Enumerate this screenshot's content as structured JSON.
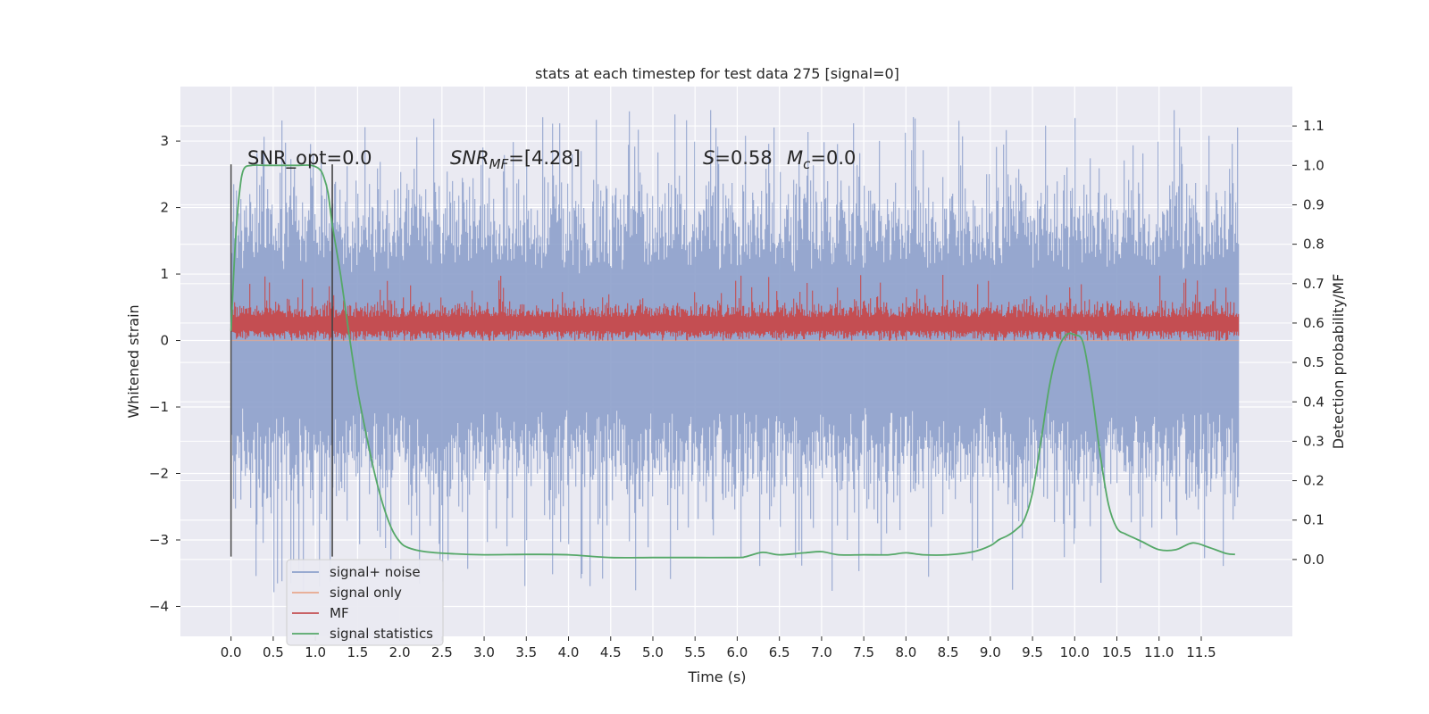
{
  "chart_data": {
    "type": "line",
    "title": "stats at each timestep for test data 275 [signal=0]",
    "xlabel": "Time (s)",
    "ylabel_left": "Whitened strain",
    "ylabel_right": "Detection probability/MF",
    "xlim": [
      -0.6,
      12.58
    ],
    "ylim_left": [
      -4.45,
      3.82
    ],
    "ylim_right": [
      -0.195,
      1.2
    ],
    "x_ticks": [
      0.0,
      0.5,
      1.0,
      1.5,
      2.0,
      2.5,
      3.0,
      3.5,
      4.0,
      4.5,
      5.0,
      5.5,
      6.0,
      6.5,
      7.0,
      7.5,
      8.0,
      8.5,
      9.0,
      9.5,
      10.0,
      10.5,
      11.0,
      11.5
    ],
    "y_ticks_left": [
      -4,
      -3,
      -2,
      -1,
      0,
      1,
      2,
      3
    ],
    "y_tick_labels_left": [
      "−4",
      "−3",
      "−2",
      "−1",
      "0",
      "1",
      "2",
      "3"
    ],
    "y_ticks_right": [
      0.0,
      0.1,
      0.2,
      0.3,
      0.4,
      0.5,
      0.6,
      0.7,
      0.8,
      0.9,
      1.0,
      1.1
    ],
    "grid": true,
    "legend_position": "lower-left",
    "series": [
      {
        "name": "signal+ noise",
        "color": "#8da0cb",
        "axis": "left",
        "style": "dense noise band",
        "x_range": [
          0.0,
          11.95
        ],
        "envelope_approx": {
          "typical": [
            -2.0,
            2.0
          ],
          "peaks": [
            -4.1,
            3.5
          ]
        }
      },
      {
        "name": "signal only",
        "color": "#e8a88d",
        "axis": "left",
        "values_note": "flat at 0"
      },
      {
        "name": "MF",
        "color": "#c44e52",
        "axis": "left",
        "style": "dense noise band",
        "x_range": [
          0.0,
          11.95
        ],
        "envelope_approx": {
          "typical": [
            0.05,
            0.55
          ],
          "peaks": [
            0.0,
            1.0
          ]
        }
      },
      {
        "name": "signal statistics",
        "color": "#55a868",
        "axis": "right",
        "x": [
          0.0,
          0.05,
          0.1,
          0.15,
          0.25,
          0.4,
          0.6,
          0.8,
          0.95,
          1.05,
          1.1,
          1.15,
          1.2,
          1.3,
          1.4,
          1.5,
          1.6,
          1.7,
          1.8,
          1.9,
          2.0,
          2.1,
          2.3,
          2.6,
          3.0,
          3.5,
          4.0,
          4.5,
          5.0,
          5.5,
          6.0,
          6.1,
          6.3,
          6.5,
          6.8,
          7.0,
          7.2,
          7.5,
          7.8,
          8.0,
          8.2,
          8.5,
          8.8,
          9.0,
          9.1,
          9.2,
          9.3,
          9.4,
          9.5,
          9.6,
          9.7,
          9.8,
          9.9,
          10.0,
          10.1,
          10.2,
          10.3,
          10.4,
          10.5,
          10.6,
          10.7,
          10.8,
          11.0,
          11.2,
          11.4,
          11.6,
          11.8,
          11.9
        ],
        "values": [
          0.58,
          0.8,
          0.93,
          0.99,
          1.0,
          1.0,
          1.0,
          1.0,
          1.0,
          0.99,
          0.97,
          0.93,
          0.85,
          0.72,
          0.57,
          0.43,
          0.32,
          0.22,
          0.14,
          0.08,
          0.045,
          0.03,
          0.02,
          0.015,
          0.012,
          0.013,
          0.012,
          0.005,
          0.005,
          0.005,
          0.005,
          0.007,
          0.018,
          0.012,
          0.017,
          0.02,
          0.012,
          0.012,
          0.012,
          0.017,
          0.012,
          0.012,
          0.02,
          0.035,
          0.05,
          0.06,
          0.075,
          0.1,
          0.17,
          0.3,
          0.44,
          0.53,
          0.57,
          0.57,
          0.55,
          0.43,
          0.27,
          0.14,
          0.08,
          0.065,
          0.055,
          0.045,
          0.025,
          0.025,
          0.042,
          0.03,
          0.015,
          0.013
        ]
      }
    ],
    "vertical_lines": [
      {
        "name": "start-marker",
        "x": 0.0,
        "ymin": -3.25,
        "ymax": 2.65,
        "color": "#555555"
      },
      {
        "name": "end-marker",
        "x": 1.2,
        "ymin": -3.25,
        "ymax": 2.65,
        "color": "#444444"
      }
    ],
    "annotations": {
      "snr_opt": "SNR_opt=0.0",
      "snr_mf_base": "SNR",
      "snr_mf_sub": "MF",
      "snr_mf_value": "=[4.28]",
      "s_var": "S",
      "s_value": "=0.58",
      "mc_var": "M",
      "mc_sub": "c",
      "mc_value": "=0.0"
    },
    "legend": [
      "signal+ noise",
      "signal only",
      "MF",
      "signal statistics"
    ]
  },
  "colors": {
    "plot_background": "#eaeaf2",
    "grid": "#ffffff",
    "text": "#262626"
  }
}
